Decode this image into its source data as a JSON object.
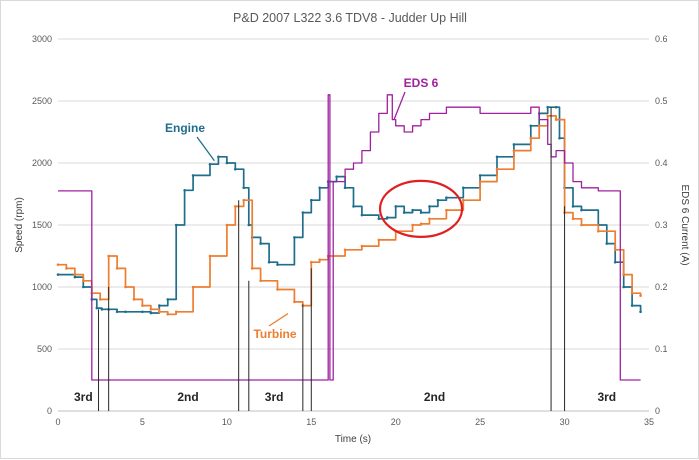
{
  "chart_data": {
    "type": "line",
    "title": "P&D  2007 L322 3.6 TDV8  -  Judder Up Hill",
    "xlabel": "Time (s)",
    "ylabel": "Speed (rpm)",
    "y2label": "EDS 6 Current (A)",
    "xlim": [
      0,
      35
    ],
    "ylim": [
      0,
      3000
    ],
    "y2lim": [
      0,
      0.6
    ],
    "xticks": [
      "0",
      "5",
      "10",
      "15",
      "20",
      "25",
      "30",
      "35"
    ],
    "yticks": [
      "0",
      "500",
      "1000",
      "1500",
      "2000",
      "2500",
      "3000"
    ],
    "y2ticks": [
      "0",
      "0.1",
      "0.2",
      "0.3",
      "0.4",
      "0.5",
      "0.6"
    ],
    "grid": "horizontal",
    "legend": "none",
    "series": [
      {
        "name": "Engine",
        "axis": "left",
        "color": "#1f6e8c",
        "x": [
          0,
          1,
          1.5,
          2,
          2.3,
          2.6,
          3,
          3.5,
          4,
          5,
          5.5,
          6,
          6.5,
          7,
          7.5,
          8,
          9,
          9.5,
          10,
          10.5,
          11,
          11.3,
          11.5,
          12,
          12.5,
          13,
          14,
          14.5,
          15,
          15.5,
          16,
          16.5,
          17,
          17.5,
          18,
          19,
          19.5,
          20,
          20.5,
          21,
          21.5,
          22,
          22.5,
          23,
          24,
          25,
          26,
          27,
          28,
          28.5,
          29,
          29.5,
          29.7,
          30,
          30.5,
          31,
          32,
          32.5,
          33,
          33.5,
          34,
          34.5
        ],
        "values": [
          1100,
          1080,
          1000,
          900,
          830,
          820,
          820,
          800,
          800,
          800,
          790,
          850,
          900,
          1500,
          1780,
          1900,
          1990,
          2050,
          2000,
          1950,
          1800,
          1500,
          1400,
          1350,
          1200,
          1180,
          1400,
          1600,
          1700,
          1800,
          1850,
          1890,
          1800,
          1650,
          1580,
          1550,
          1560,
          1650,
          1600,
          1620,
          1600,
          1650,
          1700,
          1720,
          1800,
          1900,
          2050,
          2150,
          2300,
          2400,
          2450,
          2450,
          2200,
          1800,
          1650,
          1620,
          1500,
          1350,
          1200,
          1000,
          850,
          800
        ]
      },
      {
        "name": "Turbine",
        "axis": "left",
        "color": "#ed7d31",
        "x": [
          0,
          0.5,
          1,
          1.5,
          2,
          2.5,
          3,
          3.5,
          4,
          4.5,
          5,
          5.5,
          6,
          6.5,
          7,
          8,
          9,
          10,
          10.5,
          11,
          11.5,
          12,
          13,
          14,
          14.5,
          15,
          15.5,
          16,
          17,
          18,
          19,
          20,
          21,
          21.5,
          22,
          23,
          24,
          25,
          26,
          27,
          28,
          28.5,
          29,
          29.5,
          30,
          30.5,
          31,
          32,
          33,
          33.5,
          34,
          34.5
        ],
        "values": [
          1180,
          1150,
          1100,
          1050,
          950,
          900,
          1250,
          1150,
          1000,
          900,
          850,
          820,
          800,
          780,
          800,
          1000,
          1250,
          1500,
          1650,
          1700,
          1150,
          1050,
          980,
          880,
          850,
          1200,
          1220,
          1250,
          1300,
          1330,
          1380,
          1450,
          1500,
          1510,
          1550,
          1620,
          1700,
          1850,
          1950,
          2100,
          2200,
          2300,
          2380,
          2350,
          1600,
          1550,
          1500,
          1450,
          1300,
          1100,
          950,
          930
        ]
      },
      {
        "name": "EDS 6",
        "axis": "right",
        "color": "#a020a0",
        "x": [
          0,
          1.9,
          2.0,
          15.9,
          16.0,
          16.1,
          16.3,
          17,
          17.5,
          18,
          18.5,
          19,
          19.5,
          19.8,
          20,
          20.5,
          21,
          21.5,
          22,
          23,
          24,
          25,
          26,
          27,
          28,
          28.5,
          29,
          29.2,
          29.5,
          30,
          30.5,
          31,
          32,
          33.2,
          33.3,
          34.5
        ],
        "values": [
          0.355,
          0.355,
          0.05,
          0.05,
          0.51,
          0.05,
          0.37,
          0.39,
          0.4,
          0.42,
          0.45,
          0.48,
          0.51,
          0.47,
          0.46,
          0.45,
          0.46,
          0.47,
          0.48,
          0.49,
          0.49,
          0.48,
          0.48,
          0.48,
          0.49,
          0.47,
          0.43,
          0.41,
          0.42,
          0.4,
          0.37,
          0.36,
          0.355,
          0.355,
          0.05,
          0.05
        ]
      }
    ],
    "annotations": [
      {
        "text": "Engine",
        "x": 9.5,
        "y": 2050
      },
      {
        "text": "Turbine",
        "x": 13.5,
        "y": 850
      },
      {
        "text": "EDS 6",
        "x": 20.2,
        "y": 2480
      },
      {
        "text": "ellipse",
        "x": 21.5,
        "y": 1630
      }
    ],
    "gear_labels": [
      {
        "text": "3rd",
        "x": 1.5
      },
      {
        "text": "2nd",
        "x": 7.7
      },
      {
        "text": "3rd",
        "x": 12.8
      },
      {
        "text": "2nd",
        "x": 22.3
      },
      {
        "text": "3rd",
        "x": 32.5
      }
    ],
    "vertical_markers": [
      {
        "x": 2.4,
        "y": 820
      },
      {
        "x": 3.0,
        "y": 1000
      },
      {
        "x": 10.7,
        "y": 1700
      },
      {
        "x": 11.3,
        "y": 1050
      },
      {
        "x": 14.5,
        "y": 860
      },
      {
        "x": 15.0,
        "y": 1150
      },
      {
        "x": 29.2,
        "y": 2450
      },
      {
        "x": 30.0,
        "y": 1650
      }
    ]
  }
}
